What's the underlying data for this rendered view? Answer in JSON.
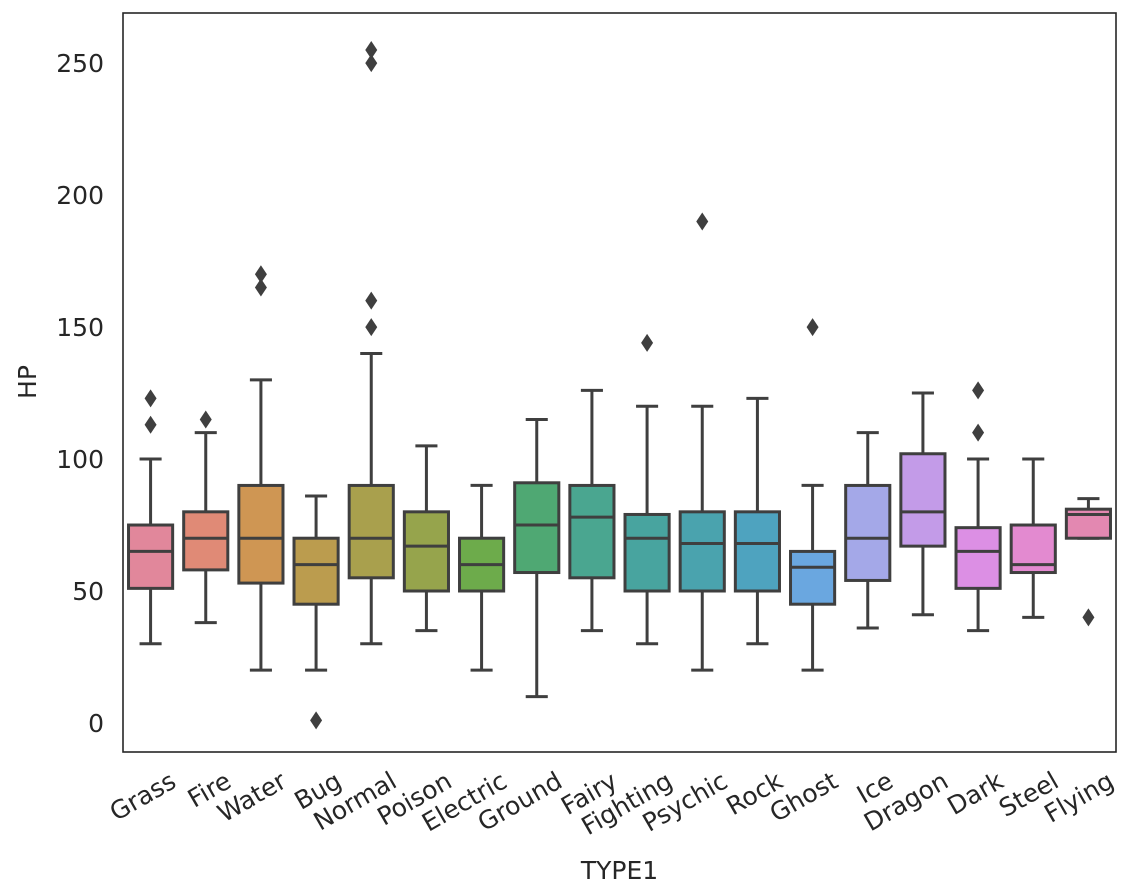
{
  "chart_data": {
    "type": "box",
    "xlabel": "TYPE1",
    "ylabel": "HP",
    "ylim": [
      -11,
      269
    ],
    "yticks": [
      0,
      50,
      100,
      150,
      200,
      250
    ],
    "grid": false,
    "categories": [
      "Grass",
      "Fire",
      "Water",
      "Bug",
      "Normal",
      "Poison",
      "Electric",
      "Ground",
      "Fairy",
      "Fighting",
      "Psychic",
      "Rock",
      "Ghost",
      "Ice",
      "Dragon",
      "Dark",
      "Steel",
      "Flying"
    ],
    "boxes": [
      {
        "name": "Grass",
        "color": "#e1879b",
        "min": 30,
        "q1": 51,
        "median": 65,
        "q3": 75,
        "max": 100,
        "outliers": [
          113,
          123
        ]
      },
      {
        "name": "Fire",
        "color": "#e08a76",
        "min": 38,
        "q1": 58,
        "median": 70,
        "q3": 80,
        "max": 110,
        "outliers": [
          115
        ]
      },
      {
        "name": "Water",
        "color": "#cf9653",
        "min": 20,
        "q1": 53,
        "median": 70,
        "q3": 90,
        "max": 130,
        "outliers": [
          165,
          170
        ]
      },
      {
        "name": "Bug",
        "color": "#bb9c4e",
        "min": 20,
        "q1": 45,
        "median": 60,
        "q3": 70,
        "max": 86,
        "outliers": [
          1
        ]
      },
      {
        "name": "Normal",
        "color": "#a9a04d",
        "min": 30,
        "q1": 55,
        "median": 70,
        "q3": 90,
        "max": 140,
        "outliers": [
          150,
          160,
          250,
          255
        ]
      },
      {
        "name": "Poison",
        "color": "#96a44c",
        "min": 35,
        "q1": 50,
        "median": 67,
        "q3": 80,
        "max": 105,
        "outliers": []
      },
      {
        "name": "Electric",
        "color": "#6dab4b",
        "min": 20,
        "q1": 50,
        "median": 60,
        "q3": 70,
        "max": 90,
        "outliers": []
      },
      {
        "name": "Ground",
        "color": "#4fa873",
        "min": 10,
        "q1": 57,
        "median": 75,
        "q3": 91,
        "max": 115,
        "outliers": []
      },
      {
        "name": "Fairy",
        "color": "#4aa690",
        "min": 35,
        "q1": 55,
        "median": 78,
        "q3": 90,
        "max": 126,
        "outliers": []
      },
      {
        "name": "Fighting",
        "color": "#48a49f",
        "min": 30,
        "q1": 50,
        "median": 70,
        "q3": 79,
        "max": 120,
        "outliers": [
          144
        ]
      },
      {
        "name": "Psychic",
        "color": "#4aa3ae",
        "min": 20,
        "q1": 50,
        "median": 68,
        "q3": 80,
        "max": 120,
        "outliers": [
          190
        ]
      },
      {
        "name": "Rock",
        "color": "#4ea3bf",
        "min": 30,
        "q1": 50,
        "median": 68,
        "q3": 80,
        "max": 123,
        "outliers": []
      },
      {
        "name": "Ghost",
        "color": "#6aa7e0",
        "min": 20,
        "q1": 45,
        "median": 59,
        "q3": 65,
        "max": 90,
        "outliers": [
          150
        ]
      },
      {
        "name": "Ice",
        "color": "#a4a8e8",
        "min": 36,
        "q1": 54,
        "median": 70,
        "q3": 90,
        "max": 110,
        "outliers": []
      },
      {
        "name": "Dragon",
        "color": "#c39be8",
        "min": 41,
        "q1": 67,
        "median": 80,
        "q3": 102,
        "max": 125,
        "outliers": []
      },
      {
        "name": "Dark",
        "color": "#dc8fe4",
        "min": 35,
        "q1": 51,
        "median": 65,
        "q3": 74,
        "max": 100,
        "outliers": [
          110,
          126
        ]
      },
      {
        "name": "Steel",
        "color": "#e38ad0",
        "min": 40,
        "q1": 57,
        "median": 60,
        "q3": 75,
        "max": 100,
        "outliers": []
      },
      {
        "name": "Flying",
        "color": "#e388b1",
        "min": 70,
        "q1": 70,
        "median": 79,
        "q3": 81,
        "max": 85,
        "outliers": [
          40
        ]
      }
    ]
  }
}
